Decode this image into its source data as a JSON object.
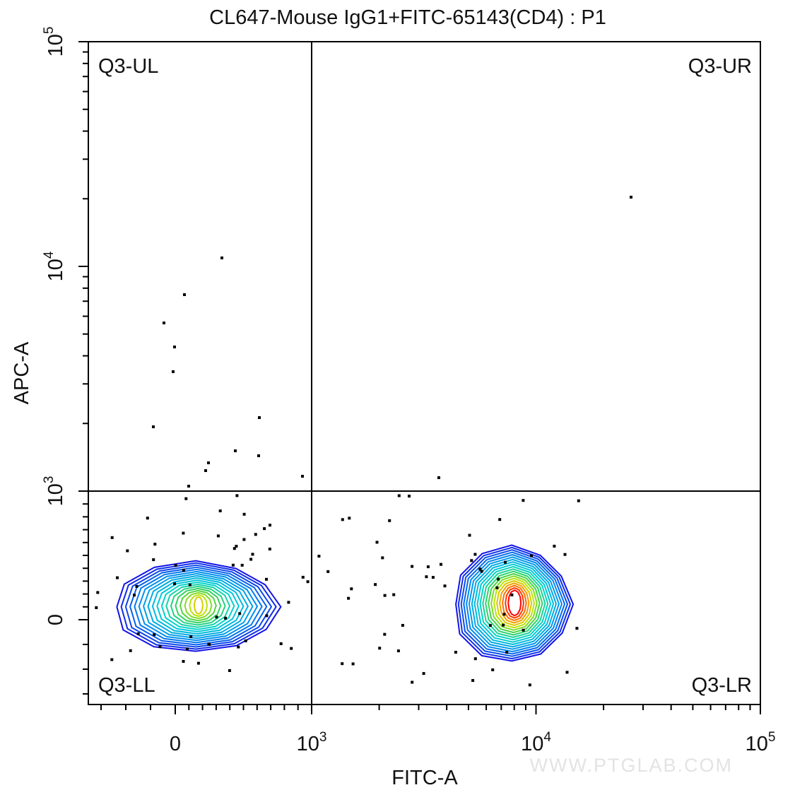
{
  "chart_data": {
    "type": "contour",
    "title": "CL647-Mouse IgG1+FITC-65143(CD4) : P1",
    "xlabel": "FITC-A",
    "ylabel": "APC-A",
    "x_scale": "biexponential",
    "y_scale": "biexponential",
    "x_ticks": [
      {
        "value": 0,
        "base": "0",
        "exp": ""
      },
      {
        "value": 1000,
        "base": "10",
        "exp": "3"
      },
      {
        "value": 10000,
        "base": "10",
        "exp": "4"
      },
      {
        "value": 100000,
        "base": "10",
        "exp": "5"
      }
    ],
    "y_ticks": [
      {
        "value": 0,
        "base": "0",
        "exp": ""
      },
      {
        "value": 1000,
        "base": "10",
        "exp": "3"
      },
      {
        "value": 10000,
        "base": "10",
        "exp": "4"
      },
      {
        "value": 100000,
        "base": "10",
        "exp": "5"
      }
    ],
    "quadrant_gate": {
      "x": 1000,
      "y": 1000
    },
    "quadrants": {
      "ul": "Q3-UL",
      "ur": "Q3-UR",
      "ll": "Q3-LL",
      "lr": "Q3-LR"
    },
    "populations": [
      {
        "quadrant": "Q3-LL",
        "center_x": 150,
        "center_y": 100
      },
      {
        "quadrant": "Q3-LR",
        "center_x": 7800,
        "center_y": 120
      }
    ],
    "grid": false,
    "legend": "none"
  },
  "watermark": "WWW.PTGLAB.COM"
}
